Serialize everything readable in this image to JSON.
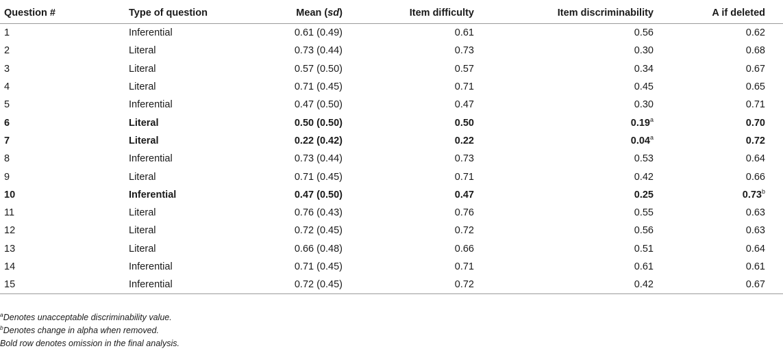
{
  "table": {
    "headers": {
      "question": "Question #",
      "type": "Type of question",
      "mean": "Mean",
      "mean_paren_open": " (",
      "mean_sd": "sd",
      "mean_paren_close": ")",
      "difficulty": "Item difficulty",
      "discriminability": "Item discriminability",
      "alpha": "A if deleted"
    },
    "rows": [
      {
        "q": "1",
        "type": "Inferential",
        "mean": "0.61 (0.49)",
        "difficulty": "0.61",
        "disc": "0.56",
        "disc_sup": "",
        "alpha": "0.62",
        "alpha_sup": "",
        "bold": false
      },
      {
        "q": "2",
        "type": "Literal",
        "mean": "0.73 (0.44)",
        "difficulty": "0.73",
        "disc": "0.30",
        "disc_sup": "",
        "alpha": "0.68",
        "alpha_sup": "",
        "bold": false
      },
      {
        "q": "3",
        "type": "Literal",
        "mean": "0.57 (0.50)",
        "difficulty": "0.57",
        "disc": "0.34",
        "disc_sup": "",
        "alpha": "0.67",
        "alpha_sup": "",
        "bold": false
      },
      {
        "q": "4",
        "type": "Literal",
        "mean": "0.71 (0.45)",
        "difficulty": "0.71",
        "disc": "0.45",
        "disc_sup": "",
        "alpha": "0.65",
        "alpha_sup": "",
        "bold": false
      },
      {
        "q": "5",
        "type": "Inferential",
        "mean": "0.47 (0.50)",
        "difficulty": "0.47",
        "disc": "0.30",
        "disc_sup": "",
        "alpha": "0.71",
        "alpha_sup": "",
        "bold": false
      },
      {
        "q": "6",
        "type": "Literal",
        "mean": "0.50 (0.50)",
        "difficulty": "0.50",
        "disc": "0.19",
        "disc_sup": "a",
        "alpha": "0.70",
        "alpha_sup": "",
        "bold": true
      },
      {
        "q": "7",
        "type": "Literal",
        "mean": "0.22 (0.42)",
        "difficulty": "0.22",
        "disc": "0.04",
        "disc_sup": "a",
        "alpha": "0.72",
        "alpha_sup": "",
        "bold": true
      },
      {
        "q": "8",
        "type": "Inferential",
        "mean": "0.73 (0.44)",
        "difficulty": "0.73",
        "disc": "0.53",
        "disc_sup": "",
        "alpha": "0.64",
        "alpha_sup": "",
        "bold": false
      },
      {
        "q": "9",
        "type": "Literal",
        "mean": "0.71 (0.45)",
        "difficulty": "0.71",
        "disc": "0.42",
        "disc_sup": "",
        "alpha": "0.66",
        "alpha_sup": "",
        "bold": false
      },
      {
        "q": "10",
        "type": "Inferential",
        "mean": "0.47 (0.50)",
        "difficulty": "0.47",
        "disc": "0.25",
        "disc_sup": "",
        "alpha": "0.73",
        "alpha_sup": "b",
        "bold": true
      },
      {
        "q": "11",
        "type": "Literal",
        "mean": "0.76 (0.43)",
        "difficulty": "0.76",
        "disc": "0.55",
        "disc_sup": "",
        "alpha": "0.63",
        "alpha_sup": "",
        "bold": false
      },
      {
        "q": "12",
        "type": "Literal",
        "mean": "0.72 (0.45)",
        "difficulty": "0.72",
        "disc": "0.56",
        "disc_sup": "",
        "alpha": "0.63",
        "alpha_sup": "",
        "bold": false
      },
      {
        "q": "13",
        "type": "Literal",
        "mean": "0.66 (0.48)",
        "difficulty": "0.66",
        "disc": "0.51",
        "disc_sup": "",
        "alpha": "0.64",
        "alpha_sup": "",
        "bold": false
      },
      {
        "q": "14",
        "type": "Inferential",
        "mean": "0.71 (0.45)",
        "difficulty": "0.71",
        "disc": "0.61",
        "disc_sup": "",
        "alpha": "0.61",
        "alpha_sup": "",
        "bold": false
      },
      {
        "q": "15",
        "type": "Inferential",
        "mean": "0.72 (0.45)",
        "difficulty": "0.72",
        "disc": "0.42",
        "disc_sup": "",
        "alpha": "0.67",
        "alpha_sup": "",
        "bold": false
      }
    ]
  },
  "notes": [
    {
      "sup": "a",
      "text": "Denotes unacceptable discriminability value."
    },
    {
      "sup": "b",
      "text": "Denotes change in alpha when removed."
    },
    {
      "sup": "",
      "text": "Bold row denotes omission in the final analysis."
    }
  ]
}
